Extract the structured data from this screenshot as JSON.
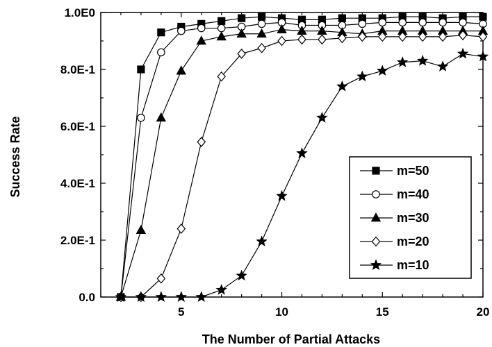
{
  "chart_data": {
    "type": "line",
    "title": "",
    "xlabel": "The Number of Partial Attacks",
    "ylabel": "Success Rate",
    "xlim": [
      1,
      20
    ],
    "ylim": [
      0,
      1
    ],
    "xticks": [
      5,
      10,
      15,
      20
    ],
    "yticks": [
      {
        "value": 0.0,
        "label": "0.0"
      },
      {
        "value": 0.2,
        "label": "2.0E-1"
      },
      {
        "value": 0.4,
        "label": "4.0E-1"
      },
      {
        "value": 0.6,
        "label": "6.0E-1"
      },
      {
        "value": 0.8,
        "label": "8.0E-1"
      },
      {
        "value": 1.0,
        "label": "1.0E0"
      }
    ],
    "grid": false,
    "legend_position": "bottom-right",
    "x": [
      2,
      3,
      4,
      5,
      6,
      7,
      8,
      9,
      10,
      11,
      12,
      13,
      14,
      15,
      16,
      17,
      18,
      19,
      20
    ],
    "series": [
      {
        "name": "m=50",
        "marker": "square-filled",
        "values": [
          0.0,
          0.8,
          0.93,
          0.95,
          0.96,
          0.97,
          0.98,
          0.985,
          0.98,
          0.975,
          0.975,
          0.98,
          0.98,
          0.98,
          0.985,
          0.985,
          0.98,
          0.985,
          0.985
        ]
      },
      {
        "name": "m=40",
        "marker": "circle-open",
        "values": [
          0.0,
          0.63,
          0.86,
          0.935,
          0.945,
          0.945,
          0.95,
          0.96,
          0.965,
          0.955,
          0.955,
          0.955,
          0.96,
          0.965,
          0.965,
          0.965,
          0.965,
          0.965,
          0.96
        ]
      },
      {
        "name": "m=30",
        "marker": "triangle-filled",
        "values": [
          0.0,
          0.235,
          0.63,
          0.795,
          0.9,
          0.915,
          0.925,
          0.925,
          0.94,
          0.935,
          0.935,
          0.93,
          0.925,
          0.935,
          0.935,
          0.935,
          0.935,
          0.935,
          0.935
        ]
      },
      {
        "name": "m=20",
        "marker": "diamond-open",
        "values": [
          0.0,
          0.0,
          0.065,
          0.24,
          0.545,
          0.775,
          0.855,
          0.875,
          0.9,
          0.905,
          0.905,
          0.91,
          0.915,
          0.915,
          0.915,
          0.915,
          0.915,
          0.92,
          0.915
        ]
      },
      {
        "name": "m=10",
        "marker": "star-filled",
        "values": [
          0.0,
          0.0,
          0.0,
          0.0,
          0.0,
          0.025,
          0.075,
          0.195,
          0.355,
          0.505,
          0.63,
          0.74,
          0.775,
          0.795,
          0.825,
          0.83,
          0.81,
          0.855,
          0.845
        ]
      }
    ]
  }
}
